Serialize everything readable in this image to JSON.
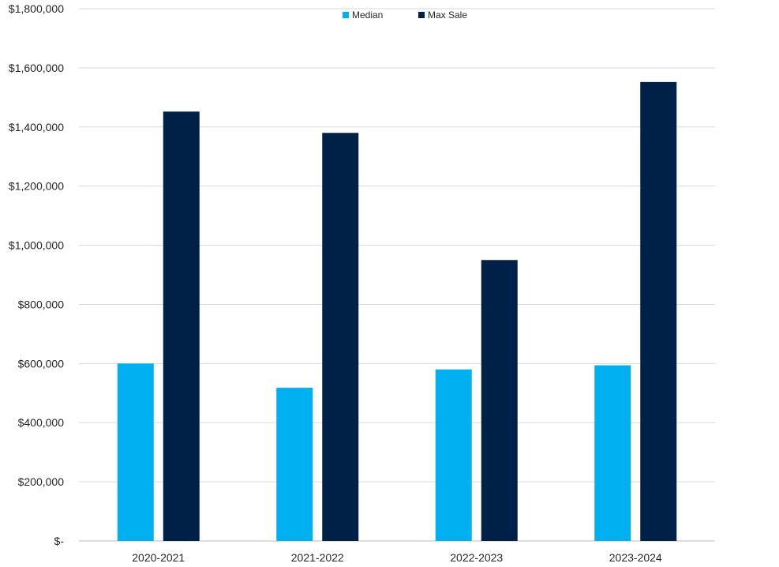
{
  "chart_data": {
    "type": "bar",
    "categories": [
      "2020-2021",
      "2021-2022",
      "2022-2023",
      "2023-2024"
    ],
    "series": [
      {
        "name": "Median",
        "values": [
          600000,
          518000,
          580000,
          594000
        ],
        "color": "#00B0F0"
      },
      {
        "name": "Max Sale",
        "values": [
          1452000,
          1380000,
          950000,
          1552000
        ],
        "color": "#002147"
      }
    ],
    "ylim": [
      0,
      1800000
    ],
    "yticks": [
      0,
      200000,
      400000,
      600000,
      800000,
      1000000,
      1200000,
      1400000,
      1600000,
      1800000
    ],
    "ytick_labels": [
      "$-",
      "$200,000",
      "$400,000",
      "$600,000",
      "$800,000",
      "$1,000,000",
      "$1,200,000",
      "$1,400,000",
      "$1,600,000",
      "$1,800,000"
    ],
    "grid": true,
    "legend_position": "top-center"
  }
}
